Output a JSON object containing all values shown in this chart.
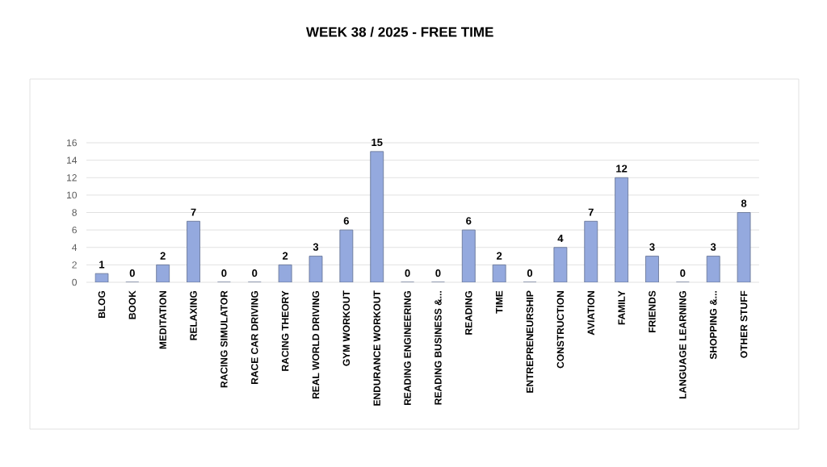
{
  "chart_data": {
    "type": "bar",
    "title": "WEEK 38 / 2025 - FREE TIME",
    "categories": [
      "BLOG",
      "BOOK",
      "MEDITATION",
      "RELAXING",
      "RACING SIMULATOR",
      "RACE CAR DRIVING",
      "RACING THEORY",
      "REAL WORLD DRIVING",
      "GYM WORKOUT",
      "ENDURANCE WORKOUT",
      "READING ENGINEERING",
      "READING BUSINESS &...",
      "READING",
      "TIME",
      "ENTREPRENEURSHIP",
      "CONSTRUCTION",
      "AVIATION",
      "FAMILY",
      "FRIENDS",
      "LANGUAGE LEARNING",
      "SHOPPING &...",
      "OTHER STUFF"
    ],
    "values": [
      1,
      0,
      2,
      7,
      0,
      0,
      2,
      3,
      6,
      15,
      0,
      0,
      6,
      2,
      0,
      4,
      7,
      12,
      3,
      0,
      3,
      8
    ],
    "color": "#94a9de",
    "ylim": [
      0,
      16
    ],
    "yticks": [
      0,
      2,
      4,
      6,
      8,
      10,
      12,
      14,
      16
    ],
    "grid": "y",
    "data_labels": true
  }
}
